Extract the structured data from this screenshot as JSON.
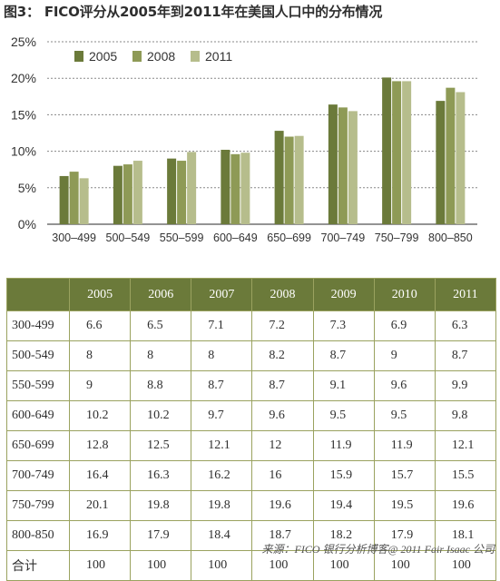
{
  "title": "图3：  FICO评分从2005年到2011年在美国人口中的分布情况",
  "chart_data": {
    "type": "bar",
    "categories": [
      "300–499",
      "500–549",
      "550–599",
      "600–649",
      "650–699",
      "700–749",
      "750–799",
      "800–850"
    ],
    "series": [
      {
        "name": "2005",
        "color": "#6b7a3a",
        "values": [
          6.6,
          8,
          9,
          10.2,
          12.8,
          16.4,
          20.1,
          16.9
        ]
      },
      {
        "name": "2008",
        "color": "#8e9a56",
        "values": [
          7.2,
          8.2,
          8.7,
          9.6,
          12,
          16,
          19.6,
          18.7
        ]
      },
      {
        "name": "2011",
        "color": "#b6bd8c",
        "values": [
          6.3,
          8.7,
          9.9,
          9.8,
          12.1,
          15.5,
          19.6,
          18.1
        ]
      }
    ],
    "yticks": [
      "0%",
      "5%",
      "10%",
      "15%",
      "20%",
      "25%"
    ],
    "ylim": [
      0,
      25
    ],
    "grid": true,
    "legend_position": "top-left"
  },
  "table": {
    "columns": [
      "",
      "2005",
      "2006",
      "2007",
      "2008",
      "2009",
      "2010",
      "2011"
    ],
    "rows": [
      [
        "300-499",
        "6.6",
        "6.5",
        "7.1",
        "7.2",
        "7.3",
        "6.9",
        "6.3"
      ],
      [
        "500-549",
        "8",
        "8",
        "8",
        "8.2",
        "8.7",
        "9",
        "8.7"
      ],
      [
        "550-599",
        "9",
        "8.8",
        "8.7",
        "8.7",
        "9.1",
        "9.6",
        "9.9"
      ],
      [
        "600-649",
        "10.2",
        "10.2",
        "9.7",
        "9.6",
        "9.5",
        "9.5",
        "9.8"
      ],
      [
        "650-699",
        "12.8",
        "12.5",
        "12.1",
        "12",
        "11.9",
        "11.9",
        "12.1"
      ],
      [
        "700-749",
        "16.4",
        "16.3",
        "16.2",
        "16",
        "15.9",
        "15.7",
        "15.5"
      ],
      [
        "750-799",
        "20.1",
        "19.8",
        "19.8",
        "19.6",
        "19.4",
        "19.5",
        "19.6"
      ],
      [
        "800-850",
        "16.9",
        "17.9",
        "18.4",
        "18.7",
        "18.2",
        "17.9",
        "18.1"
      ],
      [
        "合计",
        "100",
        "100",
        "100",
        "100",
        "100",
        "100",
        "100"
      ]
    ]
  },
  "source": "来源：FICO 银行分析博客@ 2011 Fair Isaac 公司"
}
